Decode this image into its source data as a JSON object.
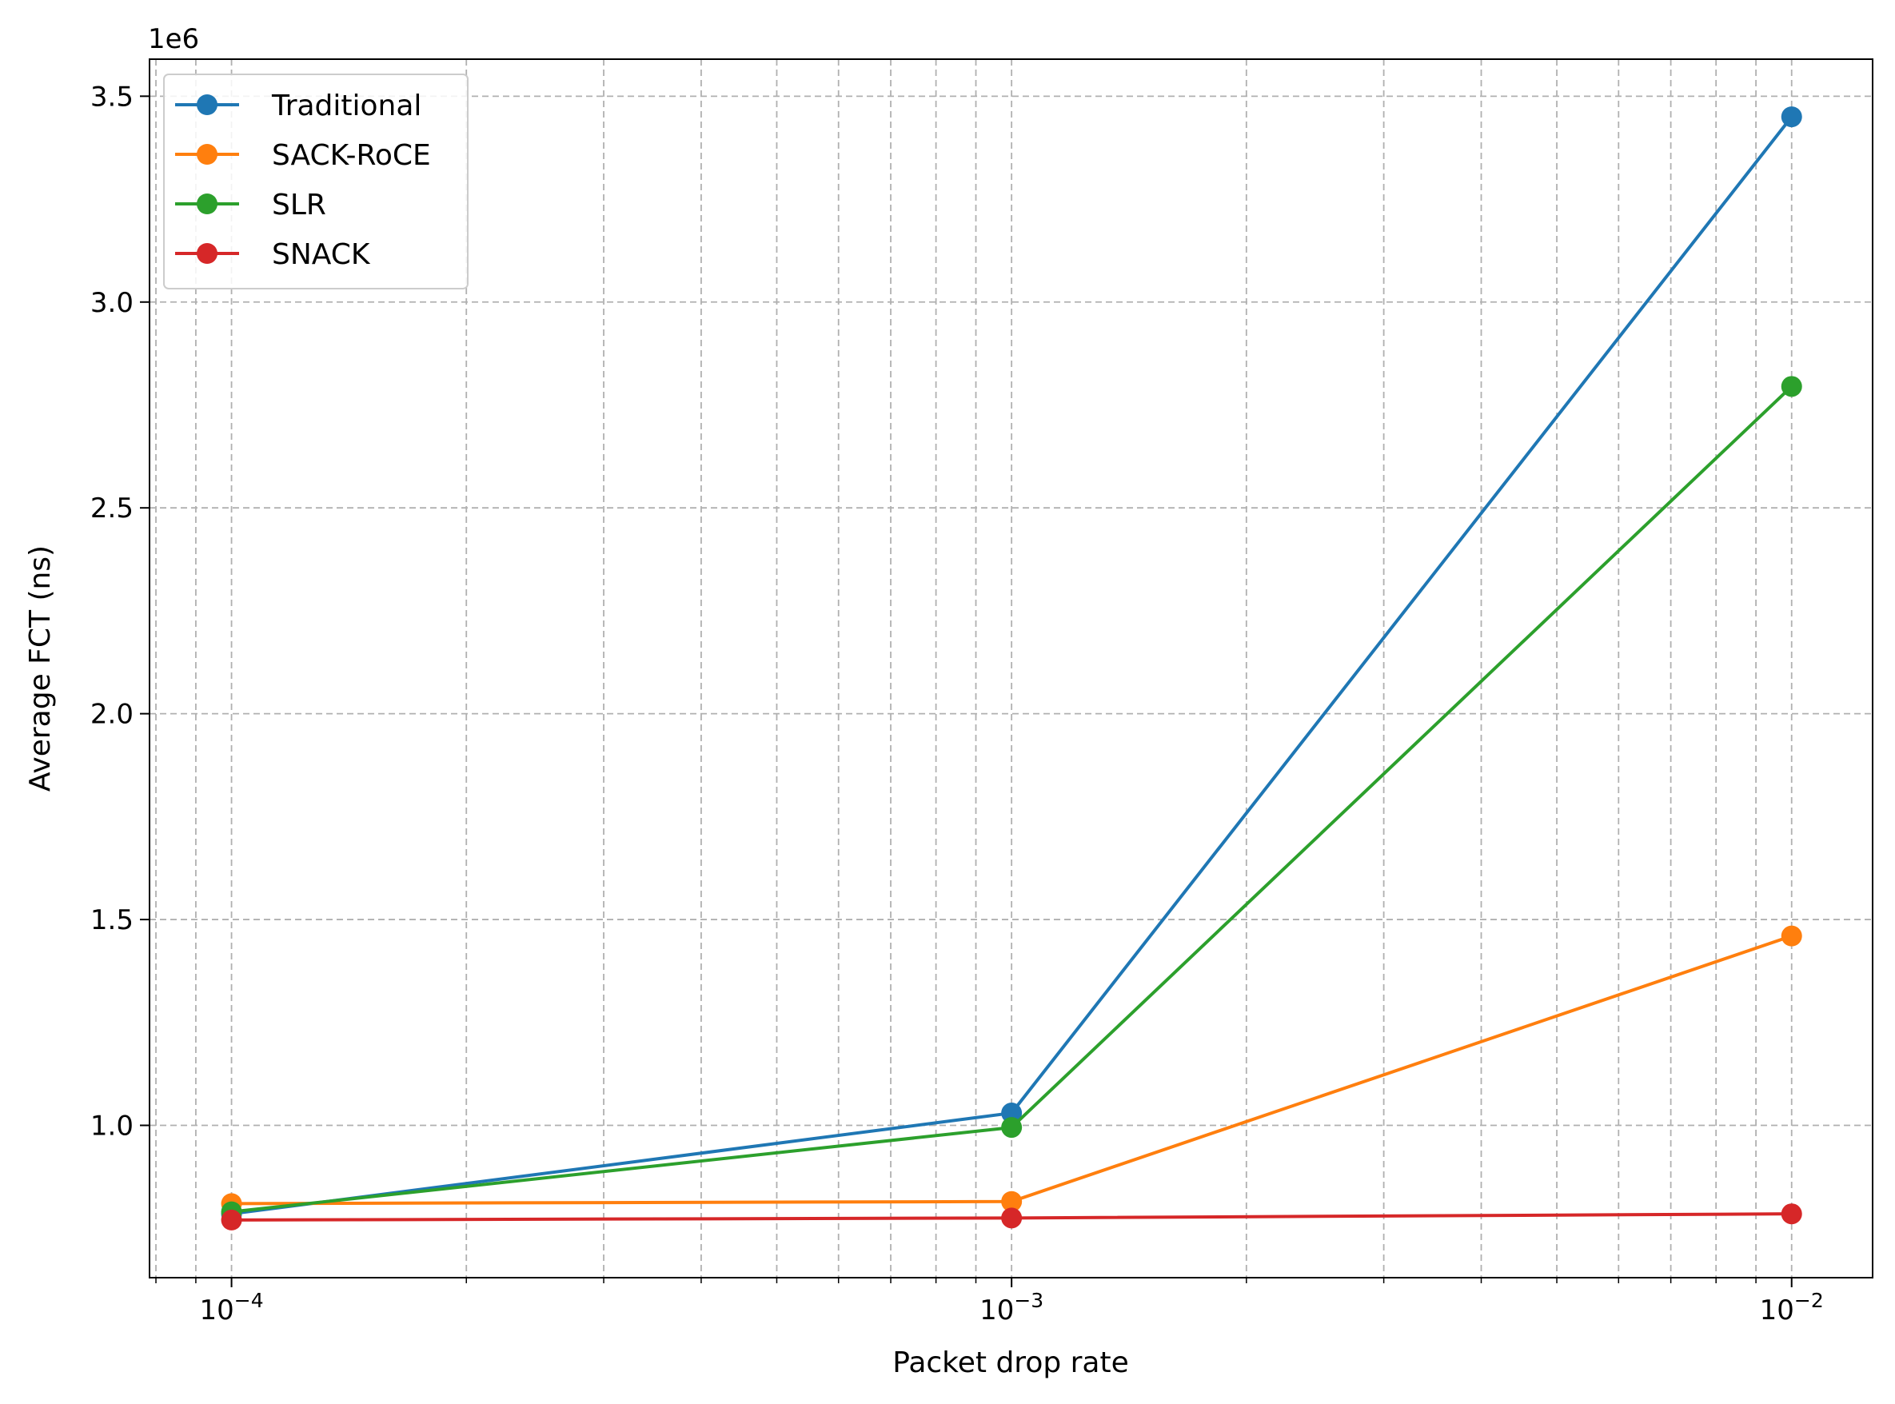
{
  "chart_data": {
    "type": "line",
    "xlabel": "Packet drop rate",
    "ylabel": "Average FCT (ns)",
    "x_scale": "log",
    "xlim": [
      7.85e-05,
      0.0127
    ],
    "ylim": [
      630000,
      3590000
    ],
    "y_offset_label": "1e6",
    "x": [
      0.0001,
      0.001,
      0.01
    ],
    "x_ticks": [
      {
        "value": 0.0001,
        "base": "10",
        "exp": "−4"
      },
      {
        "value": 0.001,
        "base": "10",
        "exp": "−3"
      },
      {
        "value": 0.01,
        "base": "10",
        "exp": "−2"
      }
    ],
    "y_ticks": [
      {
        "value": 1000000,
        "label": "1.0"
      },
      {
        "value": 1500000,
        "label": "1.5"
      },
      {
        "value": 2000000,
        "label": "2.0"
      },
      {
        "value": 2500000,
        "label": "2.5"
      },
      {
        "value": 3000000,
        "label": "3.0"
      },
      {
        "value": 3500000,
        "label": "3.5"
      }
    ],
    "grid": true,
    "legend_position": "top-left",
    "series": [
      {
        "name": "Traditional",
        "color": "#1f77b4",
        "values": [
          785000,
          1030000,
          3450000
        ]
      },
      {
        "name": "SACK-RoCE",
        "color": "#ff7f0e",
        "values": [
          810000,
          815000,
          1460000
        ]
      },
      {
        "name": "SLR",
        "color": "#2ca02c",
        "values": [
          790000,
          995000,
          2795000
        ]
      },
      {
        "name": "SNACK",
        "color": "#d62728",
        "values": [
          770000,
          775000,
          785000
        ]
      }
    ]
  }
}
